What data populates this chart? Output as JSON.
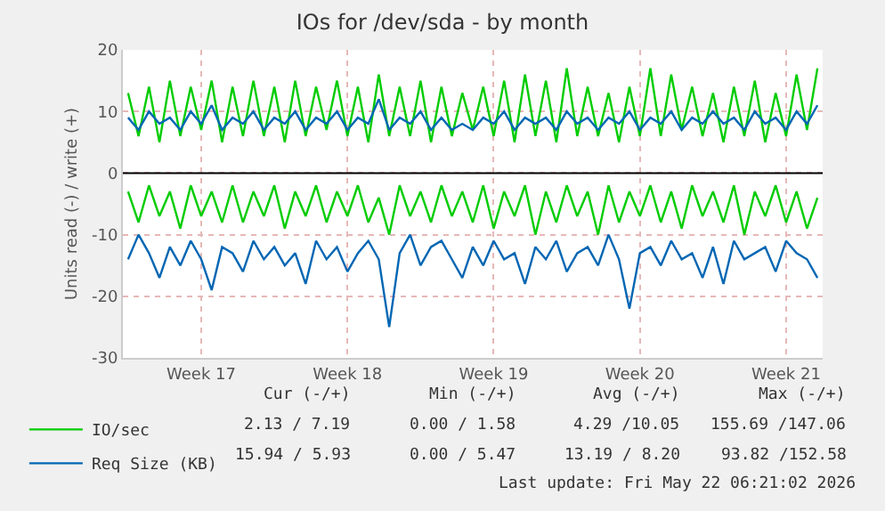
{
  "chart_data": {
    "type": "line",
    "title": "IOs for /dev/sda - by month",
    "ylabel": "Units read (-) / write (+)",
    "categories": [
      null,
      null,
      null,
      null,
      null,
      null,
      null,
      "Week 17",
      null,
      null,
      null,
      null,
      null,
      null,
      null,
      null,
      null,
      null,
      null,
      null,
      null,
      "Week 18",
      null,
      null,
      null,
      null,
      null,
      null,
      null,
      null,
      null,
      null,
      null,
      null,
      null,
      "Week 19",
      null,
      null,
      null,
      null,
      null,
      null,
      null,
      null,
      null,
      null,
      null,
      null,
      null,
      "Week 20",
      null,
      null,
      null,
      null,
      null,
      null,
      null,
      null,
      null,
      null,
      null,
      null,
      null,
      "Week 21",
      null,
      null,
      null
    ],
    "ylim": [
      -30,
      20
    ],
    "yticks": [
      -30,
      -20,
      -10,
      0,
      10,
      20
    ],
    "grid": true,
    "legend": "bottom left",
    "marker": "none",
    "line_style": "solid",
    "ref_lines": [
      {
        "axis": "y",
        "value": 0,
        "color": "#000000"
      }
    ],
    "series": [
      {
        "name": "IO/sec",
        "color": "#00cc00",
        "values": [
          13,
          6,
          14,
          5,
          15,
          6,
          14,
          7,
          15,
          5,
          14,
          6,
          15,
          6,
          14,
          5,
          15,
          6,
          14,
          7,
          15,
          6,
          14,
          5,
          16,
          6,
          14,
          6,
          15,
          5,
          14,
          6,
          13,
          7,
          14,
          6,
          15,
          5,
          16,
          6,
          15,
          5,
          17,
          6,
          14,
          6,
          13,
          5,
          14,
          6,
          17,
          6,
          16,
          7,
          14,
          6,
          13,
          5,
          14,
          6,
          15,
          5,
          13,
          6,
          16,
          7,
          17
        ]
      },
      {
        "color": "#00cc00",
        "values": [
          -3,
          -8,
          -2,
          -7,
          -3,
          -9,
          -2,
          -7,
          -3,
          -8,
          -2,
          -8,
          -3,
          -7,
          -2,
          -9,
          -3,
          -7,
          -2,
          -8,
          -3,
          -7,
          -2,
          -8,
          -4,
          -10,
          -2,
          -7,
          -3,
          -8,
          -2,
          -7,
          -3,
          -8,
          -2,
          -9,
          -3,
          -7,
          -2,
          -10,
          -3,
          -8,
          -2,
          -7,
          -3,
          -10,
          -2,
          -8,
          -3,
          -7,
          -2,
          -8,
          -3,
          -9,
          -2,
          -7,
          -3,
          -8,
          -2,
          -10,
          -3,
          -7,
          -2,
          -8,
          -3,
          -9,
          -4
        ]
      },
      {
        "name": "Req Size (KB)",
        "color": "#0066b3",
        "values": [
          9,
          7,
          10,
          8,
          9,
          7,
          10,
          8,
          11,
          7,
          9,
          8,
          10,
          7,
          9,
          8,
          10,
          7,
          9,
          8,
          10,
          7,
          9,
          8,
          12,
          7,
          9,
          8,
          10,
          7,
          9,
          7,
          8,
          7,
          9,
          8,
          10,
          7,
          9,
          8,
          9,
          7,
          10,
          8,
          9,
          7,
          9,
          8,
          10,
          7,
          9,
          8,
          10,
          7,
          9,
          8,
          10,
          8,
          9,
          7,
          10,
          8,
          9,
          7,
          10,
          8,
          11
        ]
      },
      {
        "color": "#0066b3",
        "values": [
          -14,
          -10,
          -13,
          -17,
          -12,
          -15,
          -11,
          -14,
          -19,
          -12,
          -13,
          -16,
          -11,
          -14,
          -12,
          -15,
          -13,
          -18,
          -11,
          -14,
          -12,
          -16,
          -13,
          -11,
          -14,
          -25,
          -13,
          -10,
          -15,
          -12,
          -11,
          -14,
          -17,
          -12,
          -15,
          -11,
          -14,
          -13,
          -18,
          -12,
          -14,
          -11,
          -16,
          -13,
          -12,
          -15,
          -10,
          -14,
          -22,
          -13,
          -12,
          -15,
          -11,
          -14,
          -13,
          -17,
          -12,
          -18,
          -11,
          -14,
          -13,
          -12,
          -16,
          -11,
          -13,
          -14,
          -17
        ]
      }
    ],
    "annotations": [
      "Cur (-/+)",
      "Min (-/+)",
      "Avg (-/+)",
      "Max (-/+)",
      "2.13 / 7.19",
      "0.00 / 1.58",
      "4.29 /10.05",
      "155.69 /147.06",
      "15.94 / 5.93",
      "0.00 / 5.47",
      "13.19 / 8.20",
      "93.82 /152.58",
      "Last update: Fri May 22 06:21:02 2026"
    ]
  }
}
